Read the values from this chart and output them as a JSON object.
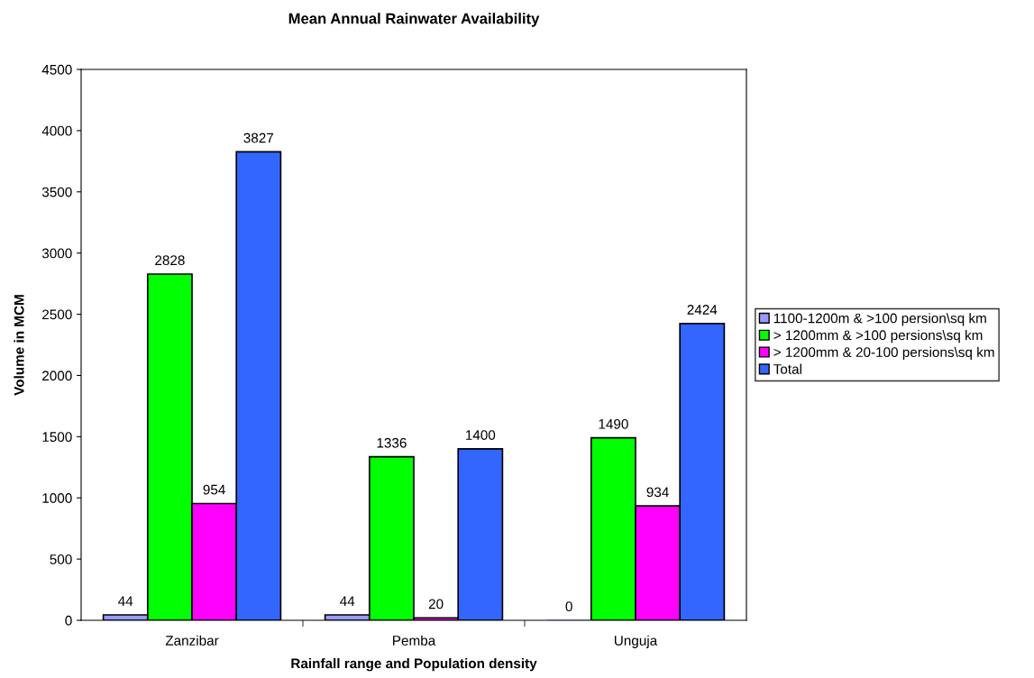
{
  "chart_data": {
    "type": "bar",
    "title": "Mean Annual Rainwater Availability",
    "xlabel": "Rainfall range and Population density",
    "ylabel": "Volume in MCM",
    "categories": [
      "Zanzibar",
      "Pemba",
      "Unguja"
    ],
    "series": [
      {
        "name": "1100-1200m & >100 persion\\sq km",
        "color": "#9999ff",
        "values": [
          44,
          44,
          0
        ]
      },
      {
        "name": "> 1200mm & >100 persions\\sq km",
        "color": "#00ff00",
        "values": [
          2828,
          1336,
          1490
        ]
      },
      {
        "name": "> 1200mm & 20-100 persions\\sq km",
        "color": "#ff00ff",
        "values": [
          954,
          20,
          934
        ]
      },
      {
        "name": "Total",
        "color": "#3366ff",
        "values": [
          3827,
          1400,
          2424
        ]
      }
    ],
    "ylim": [
      0,
      4500
    ],
    "yticks": [
      0,
      500,
      1000,
      1500,
      2000,
      2500,
      3000,
      3500,
      4000,
      4500
    ],
    "data_labels": true,
    "grid": false,
    "legend": "right"
  }
}
